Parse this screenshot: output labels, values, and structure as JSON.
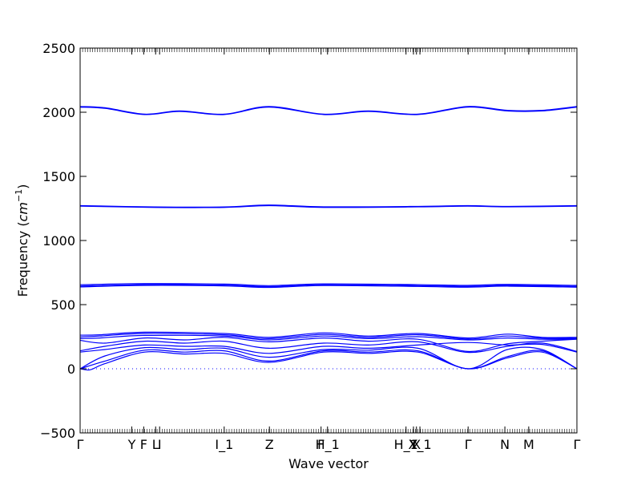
{
  "chart_data": {
    "type": "line",
    "title": "",
    "xlabel": "Wave vector",
    "ylabel": "Frequency ($cm^{-1}$)",
    "ylabel_parts": {
      "prefix": "Frequency (",
      "base": "cm",
      "sup": "−1",
      "suffix": ")"
    },
    "ylim": [
      -500,
      2500
    ],
    "yticks": [
      -500,
      0,
      500,
      1000,
      1500,
      2000,
      2500
    ],
    "xlim": [
      0,
      1
    ],
    "zero_line": {
      "y": 0,
      "style": "dotted",
      "color": "#0000ff"
    },
    "line_color": "#0000ff",
    "high_symmetry_points": [
      {
        "label": "Γ",
        "x": 0.0
      },
      {
        "label": "Y",
        "x": 0.104
      },
      {
        "label": "F",
        "x": 0.128
      },
      {
        "label": "L",
        "x": 0.152
      },
      {
        "label": "I",
        "x": 0.16
      },
      {
        "label": "I_1",
        "x": 0.29
      },
      {
        "label": "Z",
        "x": 0.381
      },
      {
        "label": "F",
        "x": 0.485
      },
      {
        "label": "H_1",
        "x": 0.498
      },
      {
        "label": "H_1",
        "x": 0.656
      },
      {
        "label": "Y",
        "x": 0.671
      },
      {
        "label": "X",
        "x": 0.677
      },
      {
        "label": "X_1",
        "x": 0.684
      },
      {
        "label": "Γ",
        "x": 0.781
      },
      {
        "label": "N",
        "x": 0.855
      },
      {
        "label": "M",
        "x": 0.903
      },
      {
        "label": "Γ",
        "x": 1.0
      }
    ],
    "series": [
      {
        "x": [
          0.0,
          0.05,
          0.13,
          0.2,
          0.29,
          0.38,
          0.49,
          0.58,
          0.68,
          0.78,
          0.86,
          0.93,
          1.0
        ],
        "y": [
          2045,
          2035,
          1985,
          2010,
          1985,
          2045,
          1985,
          2010,
          1985,
          2045,
          2015,
          2015,
          2045
        ]
      },
      {
        "x": [
          0.0,
          0.05,
          0.13,
          0.2,
          0.29,
          0.38,
          0.49,
          0.58,
          0.68,
          0.78,
          0.86,
          0.93,
          1.0
        ],
        "y": [
          2040,
          2030,
          1982,
          2006,
          1982,
          2040,
          1982,
          2006,
          1982,
          2040,
          2010,
          2010,
          2040
        ]
      },
      {
        "x": [
          0.0,
          0.15,
          0.29,
          0.38,
          0.49,
          0.68,
          0.78,
          0.86,
          1.0
        ],
        "y": [
          1272,
          1262,
          1262,
          1277,
          1263,
          1266,
          1272,
          1266,
          1272
        ]
      },
      {
        "x": [
          0.0,
          0.15,
          0.29,
          0.38,
          0.49,
          0.68,
          0.78,
          0.86,
          1.0
        ],
        "y": [
          1268,
          1258,
          1258,
          1272,
          1258,
          1262,
          1268,
          1262,
          1268
        ]
      },
      {
        "x": [
          0.0,
          0.13,
          0.29,
          0.38,
          0.49,
          0.68,
          0.78,
          0.86,
          1.0
        ],
        "y": [
          655,
          664,
          660,
          648,
          662,
          656,
          650,
          658,
          650
        ]
      },
      {
        "x": [
          0.0,
          0.13,
          0.29,
          0.38,
          0.49,
          0.68,
          0.78,
          0.86,
          1.0
        ],
        "y": [
          645,
          656,
          652,
          640,
          655,
          648,
          642,
          650,
          642
        ]
      },
      {
        "x": [
          0.0,
          0.13,
          0.29,
          0.38,
          0.49,
          0.68,
          0.78,
          0.86,
          1.0
        ],
        "y": [
          638,
          650,
          646,
          634,
          649,
          642,
          636,
          644,
          636
        ]
      },
      {
        "x": [
          0.0,
          0.04,
          0.13,
          0.29,
          0.38,
          0.49,
          0.58,
          0.68,
          0.78,
          0.86,
          0.93,
          1.0
        ],
        "y": [
          262,
          265,
          285,
          275,
          245,
          280,
          255,
          275,
          240,
          270,
          245,
          245
        ]
      },
      {
        "x": [
          0.0,
          0.04,
          0.13,
          0.29,
          0.38,
          0.49,
          0.58,
          0.68,
          0.78,
          0.86,
          0.93,
          1.0
        ],
        "y": [
          248,
          255,
          275,
          265,
          235,
          268,
          245,
          265,
          232,
          255,
          238,
          238
        ]
      },
      {
        "x": [
          0.0,
          0.04,
          0.13,
          0.29,
          0.38,
          0.49,
          0.58,
          0.68,
          0.78,
          0.86,
          0.93,
          1.0
        ],
        "y": [
          235,
          240,
          260,
          255,
          225,
          255,
          235,
          250,
          225,
          240,
          230,
          232
        ]
      },
      {
        "x": [
          0.0,
          0.05,
          0.13,
          0.21,
          0.29,
          0.38,
          0.49,
          0.58,
          0.68,
          0.78,
          0.86,
          0.93,
          1.0
        ],
        "y": [
          222,
          200,
          240,
          225,
          245,
          210,
          240,
          215,
          230,
          135,
          195,
          215,
          230
        ]
      },
      {
        "x": [
          0.0,
          0.05,
          0.13,
          0.21,
          0.29,
          0.38,
          0.49,
          0.58,
          0.68,
          0.78,
          0.86,
          0.93,
          1.0
        ],
        "y": [
          140,
          175,
          215,
          200,
          215,
          160,
          200,
          185,
          210,
          128,
          175,
          200,
          135
        ]
      },
      {
        "x": [
          0.0,
          0.05,
          0.13,
          0.21,
          0.29,
          0.38,
          0.49,
          0.58,
          0.68,
          0.78,
          0.86,
          0.93,
          1.0
        ],
        "y": [
          130,
          150,
          185,
          175,
          175,
          120,
          175,
          160,
          185,
          205,
          185,
          190,
          130
        ]
      },
      {
        "x": [
          0.0,
          0.05,
          0.13,
          0.21,
          0.29,
          0.38,
          0.49,
          0.58,
          0.68,
          0.78,
          0.86,
          0.93,
          1.0
        ],
        "y": [
          0,
          100,
          165,
          150,
          160,
          90,
          150,
          145,
          160,
          0,
          150,
          150,
          0
        ]
      },
      {
        "x": [
          0.0,
          0.05,
          0.13,
          0.21,
          0.29,
          0.38,
          0.49,
          0.58,
          0.68,
          0.78,
          0.86,
          0.93,
          1.0
        ],
        "y": [
          0,
          60,
          145,
          130,
          140,
          60,
          140,
          130,
          140,
          0,
          95,
          140,
          0
        ]
      },
      {
        "x": [
          0.0,
          0.02,
          0.05,
          0.13,
          0.21,
          0.29,
          0.38,
          0.49,
          0.58,
          0.68,
          0.78,
          0.86,
          0.93,
          1.0
        ],
        "y": [
          0,
          -8,
          40,
          130,
          115,
          120,
          50,
          130,
          120,
          130,
          0,
          85,
          130,
          0
        ]
      }
    ]
  }
}
